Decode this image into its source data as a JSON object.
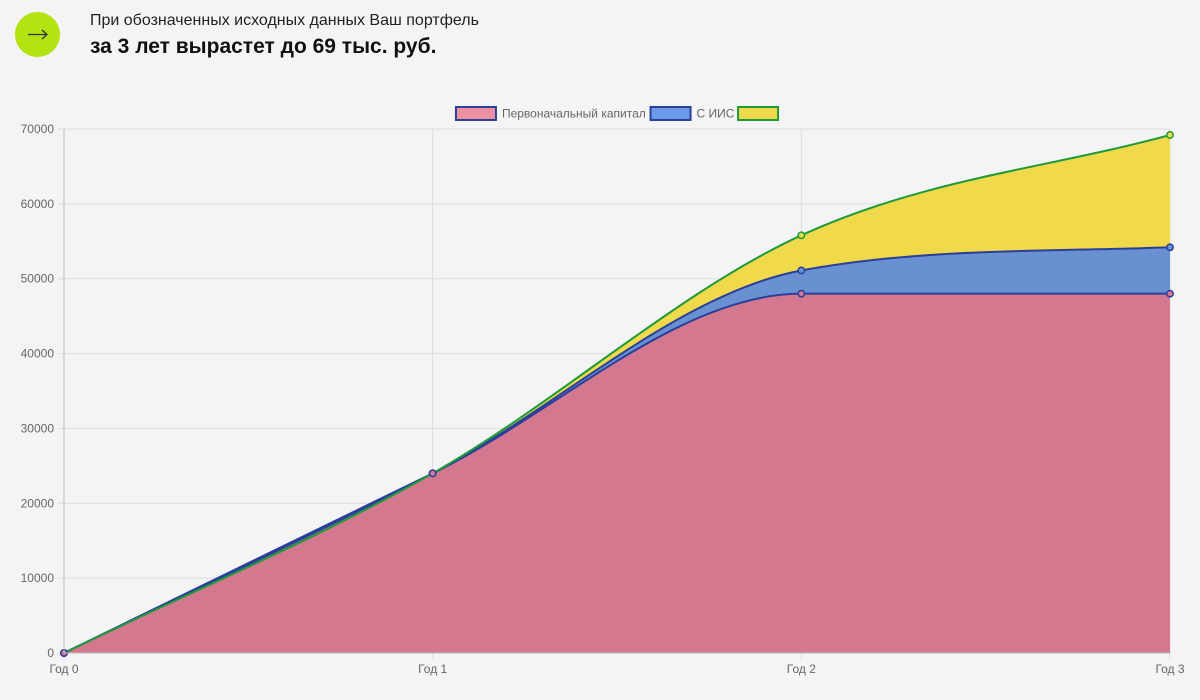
{
  "header": {
    "subtitle": "При обозначенных исходных данных Ваш портфель",
    "headline": "за 3 лет вырастет до 69 тыс. руб.",
    "arrow_icon": "arrow-right-icon",
    "accent_color": "#b3e312"
  },
  "chart_data": {
    "type": "area",
    "stacked": true,
    "smooth": true,
    "categories": [
      "Год 0",
      "Год 1",
      "Год 2",
      "Год 3"
    ],
    "ylim": [
      0,
      70000
    ],
    "yticks": [
      0,
      10000,
      20000,
      30000,
      40000,
      50000,
      60000,
      70000
    ],
    "grid": true,
    "legend_position": "top-center",
    "series": [
      {
        "name": "Первоначальный капитал",
        "values": [
          0,
          24000,
          48000,
          48000
        ],
        "fill": "#d4788f",
        "stroke": "#2a3f9a",
        "swatch_fill": "#ee8fa2"
      },
      {
        "name": "С ИИС",
        "values": [
          0,
          24000,
          51100,
          54200
        ],
        "fill": "#6991d2",
        "stroke": "#2a3f9a",
        "swatch_fill": "#6b9ae8"
      },
      {
        "name": "",
        "values": [
          0,
          24000,
          55800,
          69200
        ],
        "fill": "#f0d94a",
        "stroke": "#1e9a3a",
        "swatch_fill": "#f0d94a"
      }
    ]
  }
}
